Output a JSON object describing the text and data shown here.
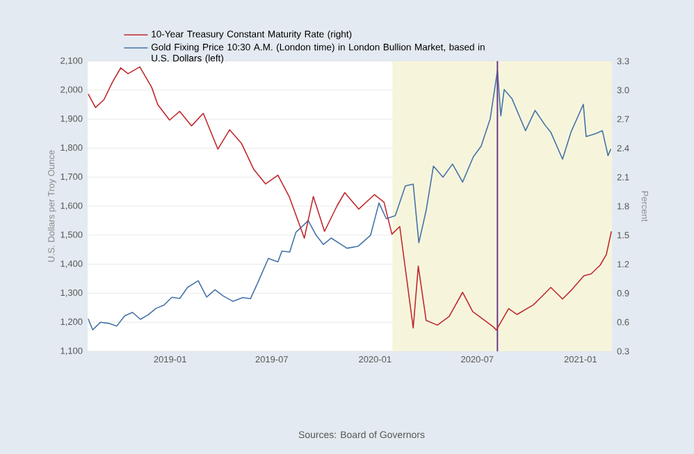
{
  "chart_data": {
    "type": "line",
    "ylabel": "U.S. Dollars per Troy Ounce",
    "y2label": "Percent",
    "series": [
      {
        "name": "10-Year Treasury Constant Maturity Rate (right)",
        "color": "#c0282d",
        "axis": "y2",
        "x": [
          "2018-08-08",
          "2018-08-21",
          "2018-09-05",
          "2018-09-20",
          "2018-10-05",
          "2018-10-18",
          "2018-11-08",
          "2018-11-29",
          "2018-12-10",
          "2018-12-31",
          "2019-01-18",
          "2019-02-08",
          "2019-03-01",
          "2019-03-27",
          "2019-04-17",
          "2019-05-08",
          "2019-05-30",
          "2019-06-20",
          "2019-07-12",
          "2019-08-01",
          "2019-08-28",
          "2019-09-13",
          "2019-10-03",
          "2019-10-25",
          "2019-11-08",
          "2019-12-03",
          "2019-12-31",
          "2020-01-17",
          "2020-01-31",
          "2020-02-14",
          "2020-03-09",
          "2020-03-18",
          "2020-04-01",
          "2020-04-21",
          "2020-05-12",
          "2020-06-05",
          "2020-06-23",
          "2020-07-14",
          "2020-07-30",
          "2020-08-04",
          "2020-08-26",
          "2020-09-10",
          "2020-10-09",
          "2020-10-23",
          "2020-11-09",
          "2020-11-30",
          "2020-12-17",
          "2021-01-07",
          "2021-01-20",
          "2021-02-05",
          "2021-02-16",
          "2021-02-25"
        ],
        "values": [
          2.96,
          2.82,
          2.9,
          3.08,
          3.23,
          3.17,
          3.24,
          3.03,
          2.85,
          2.69,
          2.78,
          2.63,
          2.76,
          2.39,
          2.59,
          2.45,
          2.18,
          2.03,
          2.12,
          1.9,
          1.47,
          1.9,
          1.54,
          1.8,
          1.94,
          1.77,
          1.92,
          1.84,
          1.51,
          1.59,
          0.54,
          1.18,
          0.62,
          0.57,
          0.66,
          0.91,
          0.71,
          0.62,
          0.55,
          0.52,
          0.74,
          0.68,
          0.78,
          0.86,
          0.96,
          0.84,
          0.94,
          1.08,
          1.1,
          1.19,
          1.3,
          1.54
        ]
      },
      {
        "name": "Gold Fixing Price 10:30 A.M. (London time) in London Bullion Market, based in U.S. Dollars (left)",
        "color": "#4572a7",
        "x": [
          "2018-08-08",
          "2018-08-16",
          "2018-08-30",
          "2018-09-14",
          "2018-09-28",
          "2018-10-12",
          "2018-10-26",
          "2018-11-09",
          "2018-11-23",
          "2018-12-07",
          "2018-12-21",
          "2019-01-04",
          "2019-01-18",
          "2019-02-01",
          "2019-02-20",
          "2019-03-07",
          "2019-03-22",
          "2019-04-05",
          "2019-04-23",
          "2019-05-10",
          "2019-05-24",
          "2019-06-07",
          "2019-06-25",
          "2019-07-12",
          "2019-07-19",
          "2019-08-02",
          "2019-08-13",
          "2019-09-04",
          "2019-09-18",
          "2019-10-01",
          "2019-10-15",
          "2019-11-12",
          "2019-12-02",
          "2019-12-24",
          "2020-01-08",
          "2020-01-21",
          "2020-02-06",
          "2020-02-24",
          "2020-03-09",
          "2020-03-19",
          "2020-04-01",
          "2020-04-14",
          "2020-05-01",
          "2020-05-18",
          "2020-06-05",
          "2020-06-24",
          "2020-07-08",
          "2020-07-24",
          "2020-08-06",
          "2020-08-12",
          "2020-08-18",
          "2020-09-01",
          "2020-09-25",
          "2020-10-12",
          "2020-10-30",
          "2020-11-09",
          "2020-11-30",
          "2020-12-15",
          "2021-01-06",
          "2021-01-11",
          "2021-01-28",
          "2021-02-09",
          "2021-02-19",
          "2021-02-24"
        ],
        "values": [
          1212,
          1174,
          1200,
          1196,
          1187,
          1222,
          1234,
          1210,
          1226,
          1248,
          1259,
          1286,
          1282,
          1320,
          1343,
          1287,
          1312,
          1291,
          1272,
          1285,
          1281,
          1340,
          1420,
          1408,
          1445,
          1442,
          1510,
          1550,
          1500,
          1468,
          1490,
          1455,
          1462,
          1500,
          1611,
          1557,
          1567,
          1670,
          1676,
          1474,
          1585,
          1738,
          1700,
          1745,
          1683,
          1770,
          1807,
          1900,
          2067,
          1911,
          2002,
          1970,
          1860,
          1930,
          1879,
          1855,
          1762,
          1855,
          1951,
          1840,
          1850,
          1860,
          1774,
          1797
        ]
      }
    ],
    "xlim": [
      "2018-08-07",
      "2021-02-26"
    ],
    "xticks": [
      "2019-01",
      "2019-07",
      "2020-01",
      "2020-07",
      "2021-01"
    ],
    "ylim": [
      1100,
      2100
    ],
    "yticks": [
      {
        "value": 1100,
        "label": "1,100"
      },
      {
        "value": 1200,
        "label": "1,200"
      },
      {
        "value": 1300,
        "label": "1,300"
      },
      {
        "value": 1400,
        "label": "1,400"
      },
      {
        "value": 1500,
        "label": "1,500"
      },
      {
        "value": 1600,
        "label": "1,600"
      },
      {
        "value": 1700,
        "label": "1,700"
      },
      {
        "value": 1800,
        "label": "1,800"
      },
      {
        "value": 1900,
        "label": "1,900"
      },
      {
        "value": 2000,
        "label": "2,000"
      },
      {
        "value": 2100,
        "label": "2,100"
      }
    ],
    "y2lim": [
      0.3,
      3.3
    ],
    "y2ticks": [
      0.3,
      0.6,
      0.9,
      1.2,
      1.5,
      1.8,
      2.1,
      2.4,
      2.7,
      {
        "value": 3.0,
        "label": "3.0"
      },
      3.3
    ],
    "bands": [
      {
        "axis": "x",
        "from": "2020-02-01",
        "to": "2021-02-26",
        "color": "#f6f5dc"
      }
    ],
    "ref_lines": [
      {
        "axis": "x",
        "value": "2020-08-06",
        "color": "#6b3a8c"
      }
    ],
    "grid": "y",
    "legend": "top",
    "line_style": "solid",
    "annotations": [
      "Sources: Board of Governors"
    ]
  }
}
